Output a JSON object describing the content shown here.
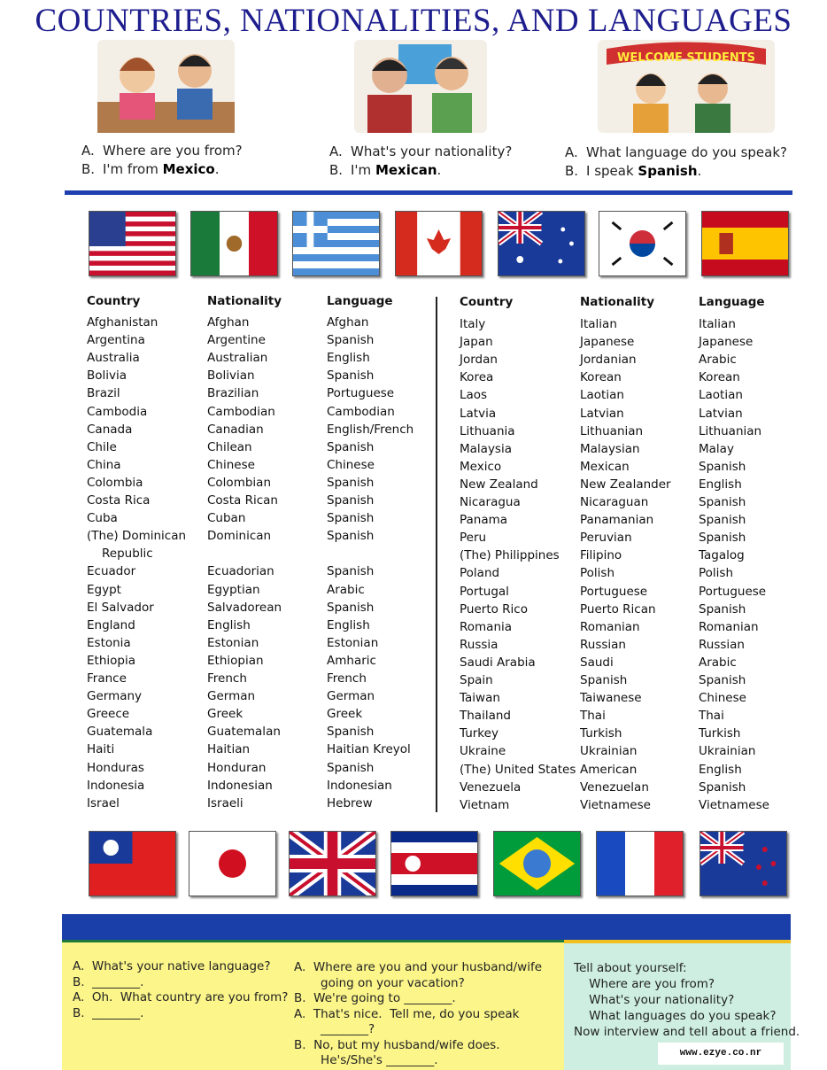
{
  "title": "COUNTRIES, NATIONALITIES, AND LANGUAGES",
  "dialogs": [
    {
      "a": "Where are you from?",
      "b_pre": "I'm from ",
      "b_bold": "Mexico",
      "b_post": "."
    },
    {
      "a": "What's your nationality?",
      "b_pre": "I'm ",
      "b_bold": "Mexican",
      "b_post": "."
    },
    {
      "a": "What language do you speak?",
      "b_pre": "I speak ",
      "b_bold": "Spanish",
      "b_post": "."
    }
  ],
  "illustration_sign": "WELCOME STUDENTS",
  "labels": {
    "a": "A.",
    "b": "B."
  },
  "flags_top": [
    "usa",
    "mexico",
    "greece",
    "canada",
    "australia",
    "south-korea",
    "spain"
  ],
  "flags_bottom": [
    "taiwan",
    "japan",
    "united-kingdom",
    "costa-rica",
    "brazil",
    "france",
    "new-zealand"
  ],
  "table": {
    "headers": [
      "Country",
      "Nationality",
      "Language"
    ],
    "left": [
      [
        "Afghanistan",
        "Afghan",
        "Afghan"
      ],
      [
        "Argentina",
        "Argentine",
        "Spanish"
      ],
      [
        "Australia",
        "Australian",
        "English"
      ],
      [
        "Bolivia",
        "Bolivian",
        "Spanish"
      ],
      [
        "Brazil",
        "Brazilian",
        "Portuguese"
      ],
      [
        "Cambodia",
        "Cambodian",
        "Cambodian"
      ],
      [
        "Canada",
        "Canadian",
        "English/French"
      ],
      [
        "Chile",
        "Chilean",
        "Spanish"
      ],
      [
        "China",
        "Chinese",
        "Chinese"
      ],
      [
        "Colombia",
        "Colombian",
        "Spanish"
      ],
      [
        "Costa Rica",
        "Costa Rican",
        "Spanish"
      ],
      [
        "Cuba",
        "Cuban",
        "Spanish"
      ],
      [
        "(The) Dominican",
        "Dominican",
        "Spanish"
      ],
      [
        "   Republic",
        "",
        ""
      ],
      [
        "Ecuador",
        "Ecuadorian",
        "Spanish"
      ],
      [
        "Egypt",
        "Egyptian",
        "Arabic"
      ],
      [
        "El Salvador",
        "Salvadorean",
        "Spanish"
      ],
      [
        "England",
        "English",
        "English"
      ],
      [
        "Estonia",
        "Estonian",
        "Estonian"
      ],
      [
        "Ethiopia",
        "Ethiopian",
        "Amharic"
      ],
      [
        "France",
        "French",
        "French"
      ],
      [
        "Germany",
        "German",
        "German"
      ],
      [
        "Greece",
        "Greek",
        "Greek"
      ],
      [
        "Guatemala",
        "Guatemalan",
        "Spanish"
      ],
      [
        "Haiti",
        "Haitian",
        "Haitian Kreyol"
      ],
      [
        "Honduras",
        "Honduran",
        "Spanish"
      ],
      [
        "Indonesia",
        "Indonesian",
        "Indonesian"
      ],
      [
        "Israel",
        "Israeli",
        "Hebrew"
      ]
    ],
    "right": [
      [
        "Italy",
        "Italian",
        "Italian"
      ],
      [
        "Japan",
        "Japanese",
        "Japanese"
      ],
      [
        "Jordan",
        "Jordanian",
        "Arabic"
      ],
      [
        "Korea",
        "Korean",
        "Korean"
      ],
      [
        "Laos",
        "Laotian",
        "Laotian"
      ],
      [
        "Latvia",
        "Latvian",
        "Latvian"
      ],
      [
        "Lithuania",
        "Lithuanian",
        "Lithuanian"
      ],
      [
        "Malaysia",
        "Malaysian",
        "Malay"
      ],
      [
        "Mexico",
        "Mexican",
        "Spanish"
      ],
      [
        "New Zealand",
        "New Zealander",
        "English"
      ],
      [
        "Nicaragua",
        "Nicaraguan",
        "Spanish"
      ],
      [
        "Panama",
        "Panamanian",
        "Spanish"
      ],
      [
        "Peru",
        "Peruvian",
        "Spanish"
      ],
      [
        "(The) Philippines",
        "Filipino",
        "Tagalog"
      ],
      [
        "Poland",
        "Polish",
        "Polish"
      ],
      [
        "Portugal",
        "Portuguese",
        "Portuguese"
      ],
      [
        "Puerto Rico",
        "Puerto Rican",
        "Spanish"
      ],
      [
        "Romania",
        "Romanian",
        "Romanian"
      ],
      [
        "Russia",
        "Russian",
        "Russian"
      ],
      [
        "Saudi Arabia",
        "Saudi",
        "Arabic"
      ],
      [
        "Spain",
        "Spanish",
        "Spanish"
      ],
      [
        "Taiwan",
        "Taiwanese",
        "Chinese"
      ],
      [
        "Thailand",
        "Thai",
        "Thai"
      ],
      [
        "Turkey",
        "Turkish",
        "Turkish"
      ],
      [
        "Ukraine",
        "Ukrainian",
        "Ukrainian"
      ],
      [
        "(The) United States",
        "American",
        "English"
      ],
      [
        "Venezuela",
        "Venezuelan",
        "Spanish"
      ],
      [
        "Vietnam",
        "Vietnamese",
        "Vietnamese"
      ]
    ]
  },
  "practice": {
    "col1": [
      "A.  What's your native language?",
      "B.  ________.",
      "A.  Oh.  What country are you from?",
      "B.  ________."
    ],
    "col2": [
      "A.  Where are you and your husband/wife",
      "       going on your vacation?",
      "B.  We're going to ________.",
      "A.  That's nice.  Tell me, do you speak",
      "       ________?",
      "B.  No, but my husband/wife does.",
      "       He's/She's ________."
    ],
    "col3": [
      "Tell about yourself:",
      "    Where are you from?",
      "    What's your nationality?",
      "    What languages do you speak?",
      "Now interview and tell about a friend."
    ]
  },
  "watermark": "www.ezye.co.nr",
  "colors": {
    "title": "#1d1d8e",
    "rule": "#1f3fb0",
    "yellow_box": "#fbf58a",
    "cyan_box": "#cdeee0"
  }
}
